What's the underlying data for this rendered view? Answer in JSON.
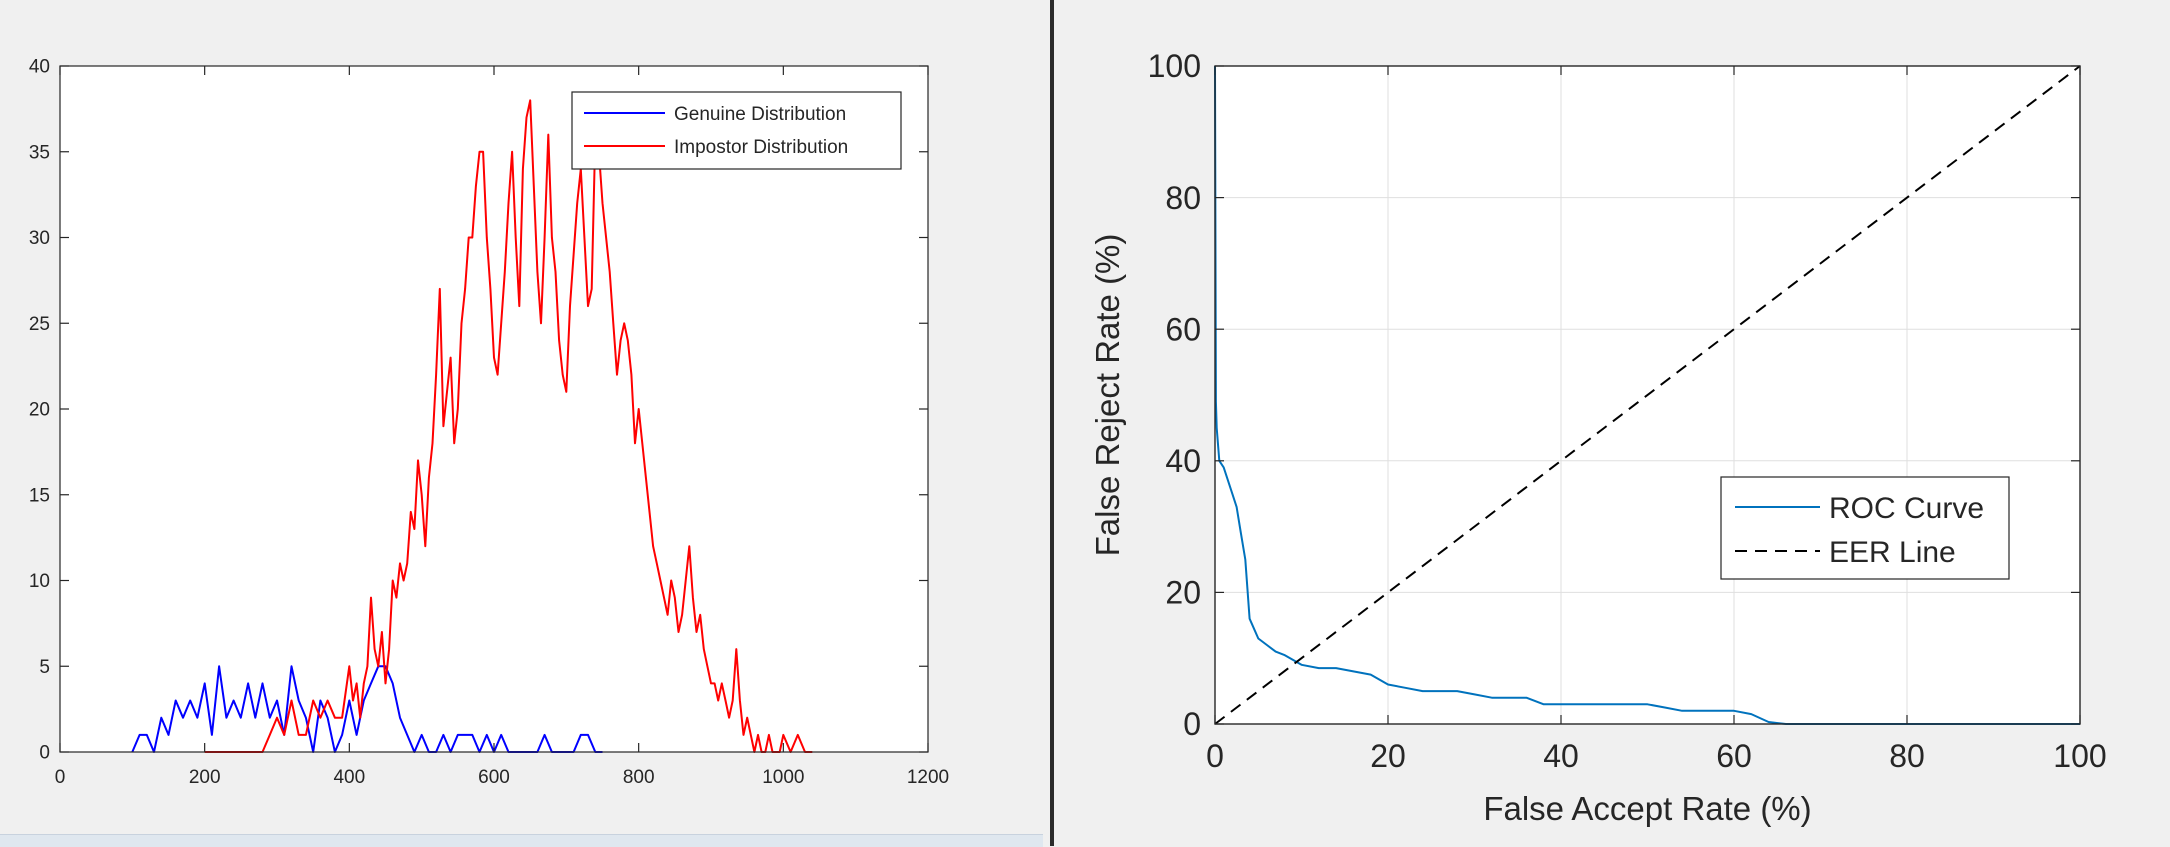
{
  "figures": {
    "left": {
      "window": "left-figure"
    },
    "right": {
      "window": "right-figure"
    }
  },
  "colors": {
    "genuine": "#0000ff",
    "impostor": "#ff0000",
    "roc": "#0072bd",
    "eer": "#000000",
    "grid": "#dfdfdf"
  },
  "chart_data": [
    {
      "type": "line",
      "title": "",
      "xlabel": "",
      "ylabel": "",
      "xlim": [
        0,
        1200
      ],
      "ylim": [
        0,
        40
      ],
      "xticks": [
        "0",
        "200",
        "400",
        "600",
        "800",
        "1000",
        "1200"
      ],
      "yticks": [
        "0",
        "5",
        "10",
        "15",
        "20",
        "25",
        "30",
        "35",
        "40"
      ],
      "grid": false,
      "legend": "top-right",
      "series": [
        {
          "name": "Genuine Distribution",
          "color": "#0000ff",
          "x": [
            100,
            110,
            120,
            130,
            140,
            150,
            160,
            170,
            180,
            190,
            200,
            210,
            220,
            230,
            240,
            250,
            260,
            270,
            280,
            290,
            300,
            310,
            320,
            330,
            340,
            350,
            360,
            370,
            380,
            390,
            400,
            410,
            420,
            430,
            440,
            450,
            460,
            470,
            480,
            490,
            500,
            510,
            520,
            530,
            540,
            550,
            560,
            570,
            580,
            590,
            600,
            610,
            620,
            630,
            640,
            650,
            660,
            670,
            680,
            690,
            700,
            710,
            720,
            730,
            740,
            750
          ],
          "y": [
            0,
            1,
            1,
            0,
            2,
            1,
            3,
            2,
            3,
            2,
            4,
            1,
            5,
            2,
            3,
            2,
            4,
            2,
            4,
            2,
            3,
            1,
            5,
            3,
            2,
            0,
            3,
            2,
            0,
            1,
            3,
            1,
            3,
            4,
            5,
            5,
            4,
            2,
            1,
            0,
            1,
            0,
            0,
            1,
            0,
            1,
            1,
            1,
            0,
            1,
            0,
            1,
            0,
            0,
            0,
            0,
            0,
            1,
            0,
            0,
            0,
            0,
            1,
            1,
            0,
            0
          ]
        },
        {
          "name": "Impostor Distribution",
          "color": "#ff0000",
          "x": [
            200,
            220,
            240,
            260,
            280,
            290,
            300,
            310,
            320,
            330,
            340,
            350,
            360,
            370,
            380,
            390,
            400,
            405,
            410,
            415,
            420,
            425,
            430,
            435,
            440,
            445,
            450,
            455,
            460,
            465,
            470,
            475,
            480,
            485,
            490,
            495,
            500,
            505,
            510,
            515,
            520,
            525,
            530,
            535,
            540,
            545,
            550,
            555,
            560,
            565,
            570,
            575,
            580,
            585,
            590,
            595,
            600,
            605,
            610,
            615,
            620,
            625,
            630,
            635,
            640,
            645,
            650,
            655,
            660,
            665,
            670,
            675,
            680,
            685,
            690,
            695,
            700,
            705,
            710,
            715,
            720,
            725,
            730,
            735,
            740,
            745,
            750,
            755,
            760,
            765,
            770,
            775,
            780,
            785,
            790,
            795,
            800,
            805,
            810,
            815,
            820,
            825,
            830,
            835,
            840,
            845,
            850,
            855,
            860,
            865,
            870,
            875,
            880,
            885,
            890,
            895,
            900,
            905,
            910,
            915,
            920,
            925,
            930,
            935,
            940,
            945,
            950,
            955,
            960,
            965,
            970,
            975,
            980,
            985,
            990,
            995,
            1000,
            1010,
            1020,
            1030,
            1040
          ],
          "y": [
            0,
            0,
            0,
            0,
            0,
            1,
            2,
            1,
            3,
            1,
            1,
            3,
            2,
            3,
            2,
            2,
            5,
            3,
            4,
            2,
            4,
            5,
            9,
            6,
            5,
            7,
            4,
            6,
            10,
            9,
            11,
            10,
            11,
            14,
            13,
            17,
            15,
            12,
            16,
            18,
            22,
            27,
            19,
            21,
            23,
            18,
            20,
            25,
            27,
            30,
            30,
            33,
            35,
            35,
            30,
            27,
            23,
            22,
            25,
            28,
            32,
            35,
            30,
            26,
            34,
            37,
            38,
            33,
            28,
            25,
            30,
            36,
            30,
            28,
            24,
            22,
            21,
            26,
            29,
            32,
            34,
            30,
            26,
            27,
            36,
            35,
            32,
            30,
            28,
            25,
            22,
            24,
            25,
            24,
            22,
            18,
            20,
            18,
            16,
            14,
            12,
            11,
            10,
            9,
            8,
            10,
            9,
            7,
            8,
            10,
            12,
            9,
            7,
            8,
            6,
            5,
            4,
            4,
            3,
            4,
            3,
            2,
            3,
            6,
            3,
            1,
            2,
            1,
            0,
            1,
            0,
            0,
            1,
            0,
            0,
            0,
            1,
            0,
            1,
            0,
            0
          ]
        }
      ]
    },
    {
      "type": "line",
      "title": "",
      "xlabel": "False Accept Rate (%)",
      "ylabel": "False Reject Rate (%)",
      "xlim": [
        0,
        100
      ],
      "ylim": [
        0,
        100
      ],
      "xticks": [
        "0",
        "20",
        "40",
        "60",
        "80",
        "100"
      ],
      "yticks": [
        "0",
        "20",
        "40",
        "60",
        "80",
        "100"
      ],
      "grid": true,
      "legend": "right",
      "series": [
        {
          "name": "ROC Curve",
          "color": "#0072bd",
          "x": [
            0,
            0.1,
            0.2,
            0.5,
            1,
            2,
            2.5,
            3,
            3.5,
            4,
            5,
            6,
            7,
            8,
            10,
            12,
            14,
            16,
            18,
            20,
            22,
            24,
            26,
            28,
            30,
            32,
            34,
            36,
            38,
            40,
            44,
            48,
            50,
            52,
            54,
            56,
            58,
            60,
            62,
            64,
            66,
            70,
            80,
            90,
            100
          ],
          "y": [
            100,
            49,
            45,
            40,
            39,
            35,
            33,
            29,
            25,
            16,
            13,
            12,
            11,
            10.5,
            9,
            8.5,
            8.5,
            8,
            7.5,
            6,
            5.5,
            5,
            5,
            5,
            4.5,
            4,
            4,
            4,
            3,
            3,
            3,
            3,
            3,
            2.5,
            2,
            2,
            2,
            2,
            1.5,
            0.3,
            0,
            0,
            0,
            0,
            0
          ]
        },
        {
          "name": "EER Line",
          "color": "#000000",
          "x": [
            0,
            100
          ],
          "y": [
            0,
            100
          ]
        }
      ]
    }
  ]
}
